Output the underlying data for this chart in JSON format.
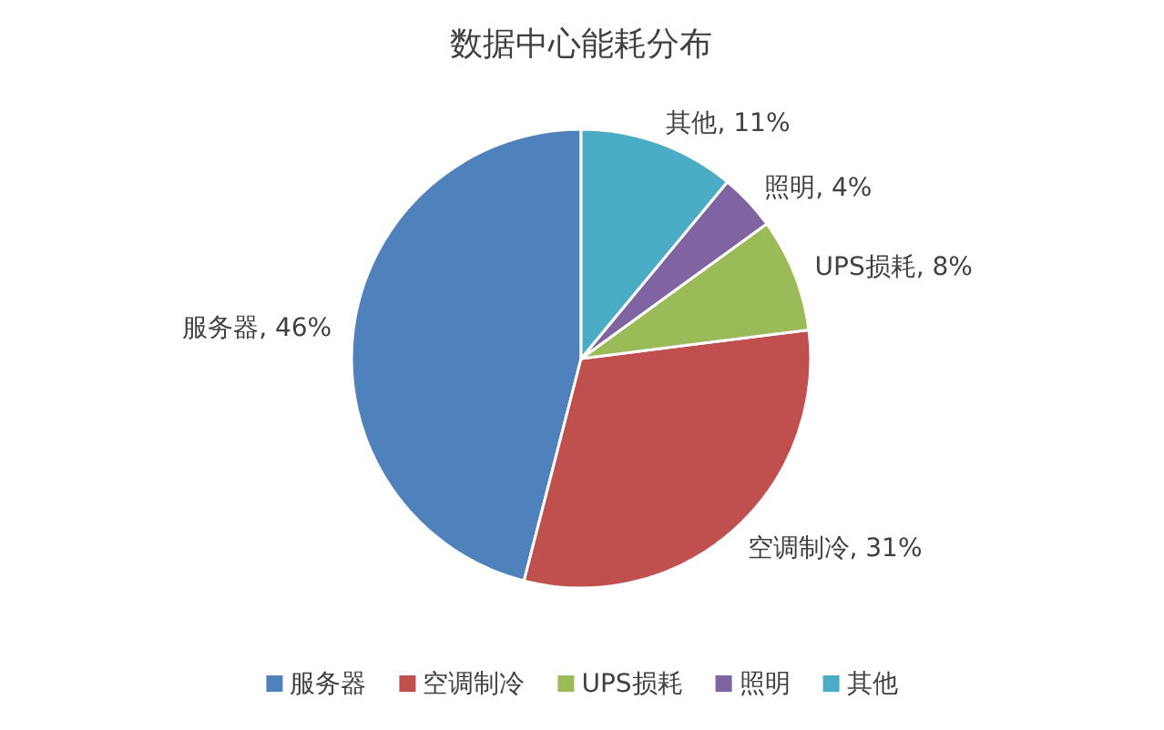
{
  "chart_data": {
    "type": "pie",
    "title": "数据中心能耗分布",
    "categories": [
      "服务器",
      "空调制冷",
      "UPS损耗",
      "照明",
      "其他"
    ],
    "values": [
      46,
      31,
      8,
      4,
      11
    ],
    "colors": [
      "#4f81bd",
      "#c0504d",
      "#9bbb59",
      "#8064a2",
      "#4bacc6"
    ],
    "value_labels": [
      "服务器, 46%",
      "空调制冷, 31%",
      "UPS损耗, 8%",
      "照明, 4%",
      "其他, 11%"
    ],
    "legend": "bottom"
  }
}
